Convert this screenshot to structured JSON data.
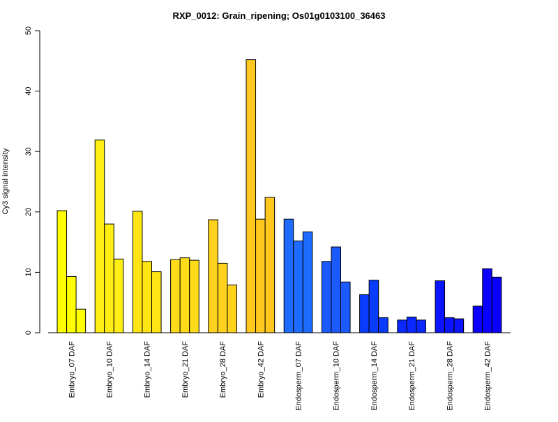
{
  "chart_data": {
    "type": "bar",
    "title": "RXP_0012: Grain_ripening; Os01g0103100_36463",
    "ylabel": "Cy3 signal intensity",
    "xlabel": "",
    "ylim": [
      0,
      50
    ],
    "yticks": [
      0,
      10,
      20,
      30,
      40,
      50
    ],
    "grid": false,
    "legend": "none",
    "categories": [
      "Embryo_07 DAF",
      "Embryo_10 DAF",
      "Embryo_14 DAF",
      "Embryo_21 DAF",
      "Embryo_28 DAF",
      "Embryo_42 DAF",
      "Endosperm_07 DAF",
      "Endosperm_10 DAF",
      "Endosperm_14 DAF",
      "Endosperm_21 DAF",
      "Endosperm_28 DAF",
      "Endosperm_42 DAF"
    ],
    "colors": [
      "#FFFF00",
      "#FFEE14",
      "#FFE513",
      "#FFDC1A",
      "#FFD21E",
      "#FFC81E",
      "#1E6BFF",
      "#1A5AFF",
      "#0A3CFF",
      "#0A28FF",
      "#0A14FF",
      "#0A00FF"
    ],
    "replicates": [
      [
        20.2,
        9.3,
        3.9
      ],
      [
        31.9,
        18.0,
        12.2
      ],
      [
        20.1,
        11.8,
        10.1
      ],
      [
        12.1,
        12.4,
        12.0
      ],
      [
        18.7,
        11.5,
        7.9
      ],
      [
        45.2,
        18.8,
        22.4
      ],
      [
        18.8,
        15.2,
        16.7
      ],
      [
        11.8,
        14.2,
        8.4
      ],
      [
        6.3,
        8.7,
        2.5
      ],
      [
        2.1,
        2.6,
        2.1
      ],
      [
        8.6,
        2.5,
        2.3
      ],
      [
        4.4,
        10.6,
        9.2
      ]
    ]
  }
}
